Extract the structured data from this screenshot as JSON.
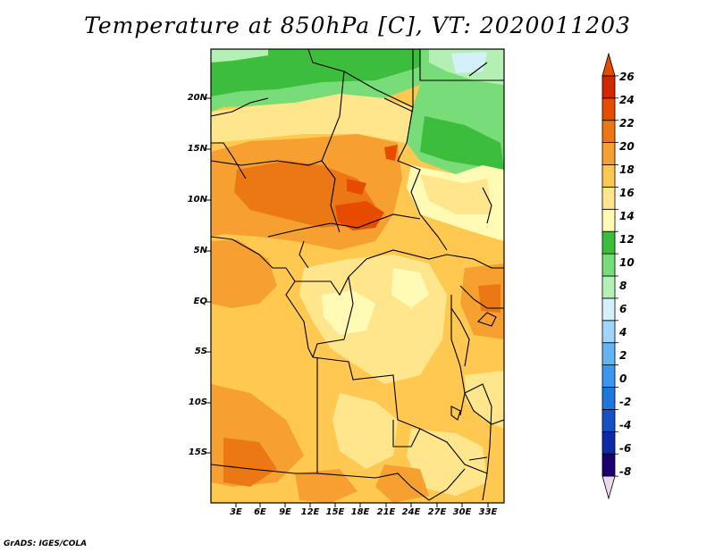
{
  "title": "Temperature at 850hPa [C], VT: 2020011203",
  "credit": "GrADS: IGES/COLA",
  "map": {
    "lat_labels": [
      "20N",
      "15N",
      "10N",
      "5N",
      "EQ",
      "5S",
      "10S",
      "15S"
    ],
    "lon_labels": [
      "3E",
      "6E",
      "9E",
      "12E",
      "15E",
      "18E",
      "21E",
      "24E",
      "27E",
      "30E",
      "33E"
    ],
    "unit": "C"
  },
  "colorbar": {
    "labels": [
      "26",
      "24",
      "22",
      "20",
      "18",
      "16",
      "14",
      "12",
      "10",
      "8",
      "6",
      "4",
      "2",
      "0",
      "-2",
      "-4",
      "-6",
      "-8"
    ],
    "colors": [
      "#e8d8f0",
      "#1a0070",
      "#0a2aa8",
      "#1450c8",
      "#1e78dc",
      "#3c96ee",
      "#64b4f4",
      "#a0d4fa",
      "#d4f0fa",
      "#b4f0b4",
      "#78dc78",
      "#3cbe3c",
      "#fffab4",
      "#ffe68c",
      "#ffc850",
      "#f5a030",
      "#eb7814",
      "#e64b00",
      "#d22800",
      "#e64b00"
    ]
  }
}
